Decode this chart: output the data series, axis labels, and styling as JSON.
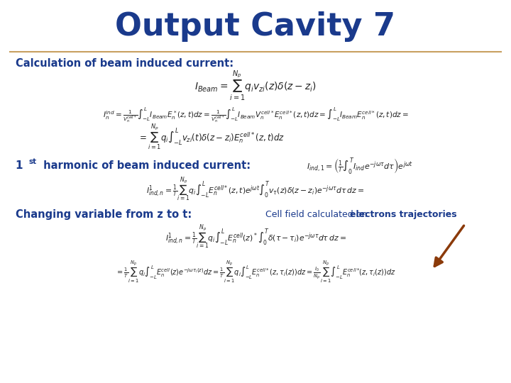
{
  "title": "Output Cavity 7",
  "title_color": "#1a3a8c",
  "title_fontsize": 32,
  "bg_color": "#e8e8e8",
  "slide_bg": "#ffffff",
  "border_color": "#bbbbbb",
  "separator_color": "#c8a060",
  "text_color": "#1a3a8c",
  "section1_label": "Calculation of beam induced current:",
  "section3_label": "Changing variable from z to t:",
  "annotation_text": "Cell field calculated on ",
  "annotation_bold": "electrons trajectories",
  "arrow_color": "#8b3a0a"
}
